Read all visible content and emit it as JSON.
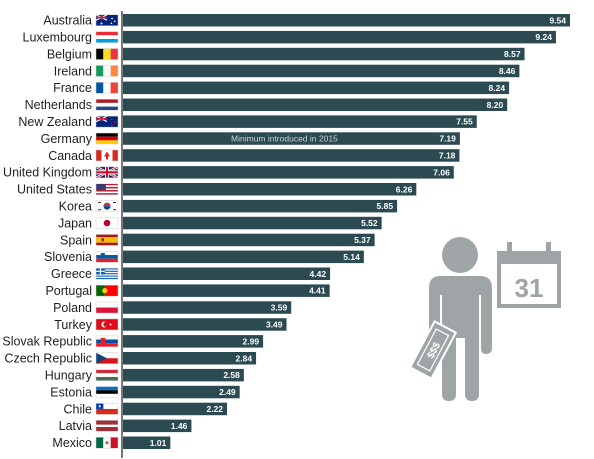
{
  "colors": {
    "bar": "#2c4a52",
    "illustration": "#9fa4a6",
    "divider": "#1f1f1f"
  },
  "illustration": {
    "person_icon": "person-icon",
    "banknote_label": "$$$",
    "calendar_icon": "calendar-icon",
    "calendar_day": "31"
  },
  "chart_data": {
    "type": "bar",
    "orientation": "horizontal",
    "categories": [
      "Australia",
      "Luxembourg",
      "Belgium",
      "Ireland",
      "France",
      "Netherlands",
      "New Zealand",
      "Germany",
      "Canada",
      "United Kingdom",
      "United States",
      "Korea",
      "Japan",
      "Spain",
      "Slovenia",
      "Greece",
      "Portugal",
      "Poland",
      "Turkey",
      "Slovak Republic",
      "Czech Republic",
      "Hungary",
      "Estonia",
      "Chile",
      "Latvia",
      "Mexico"
    ],
    "values": [
      9.54,
      9.24,
      8.57,
      8.46,
      8.24,
      8.2,
      7.55,
      7.19,
      7.18,
      7.06,
      6.26,
      5.85,
      5.52,
      5.37,
      5.14,
      4.42,
      4.41,
      3.59,
      3.49,
      2.99,
      2.84,
      2.58,
      2.49,
      2.22,
      1.46,
      1.01
    ],
    "value_labels": [
      "9.54",
      "9.24",
      "8.57",
      "8.46",
      "8.24",
      "8.20",
      "7.55",
      "7.19",
      "7.18",
      "7.06",
      "6.26",
      "5.85",
      "5.52",
      "5.37",
      "5.14",
      "4.42",
      "4.41",
      "3.59",
      "3.49",
      "2.99",
      "2.84",
      "2.58",
      "2.49",
      "2.22",
      "1.46",
      "1.01"
    ],
    "flags": [
      "australia-flag-icon",
      "luxembourg-flag-icon",
      "belgium-flag-icon",
      "ireland-flag-icon",
      "france-flag-icon",
      "netherlands-flag-icon",
      "new-zealand-flag-icon",
      "germany-flag-icon",
      "canada-flag-icon",
      "united-kingdom-flag-icon",
      "united-states-flag-icon",
      "korea-flag-icon",
      "japan-flag-icon",
      "spain-flag-icon",
      "slovenia-flag-icon",
      "greece-flag-icon",
      "portugal-flag-icon",
      "poland-flag-icon",
      "turkey-flag-icon",
      "slovak-republic-flag-icon",
      "czech-republic-flag-icon",
      "hungary-flag-icon",
      "estonia-flag-icon",
      "chile-flag-icon",
      "latvia-flag-icon",
      "mexico-flag-icon"
    ],
    "annotations": [
      {
        "category": "Germany",
        "text": "Minimum introduced in 2015"
      }
    ],
    "xlim": [
      0,
      9.54
    ],
    "title": "",
    "xlabel": "",
    "ylabel": "",
    "grid": false,
    "legend": "none"
  }
}
